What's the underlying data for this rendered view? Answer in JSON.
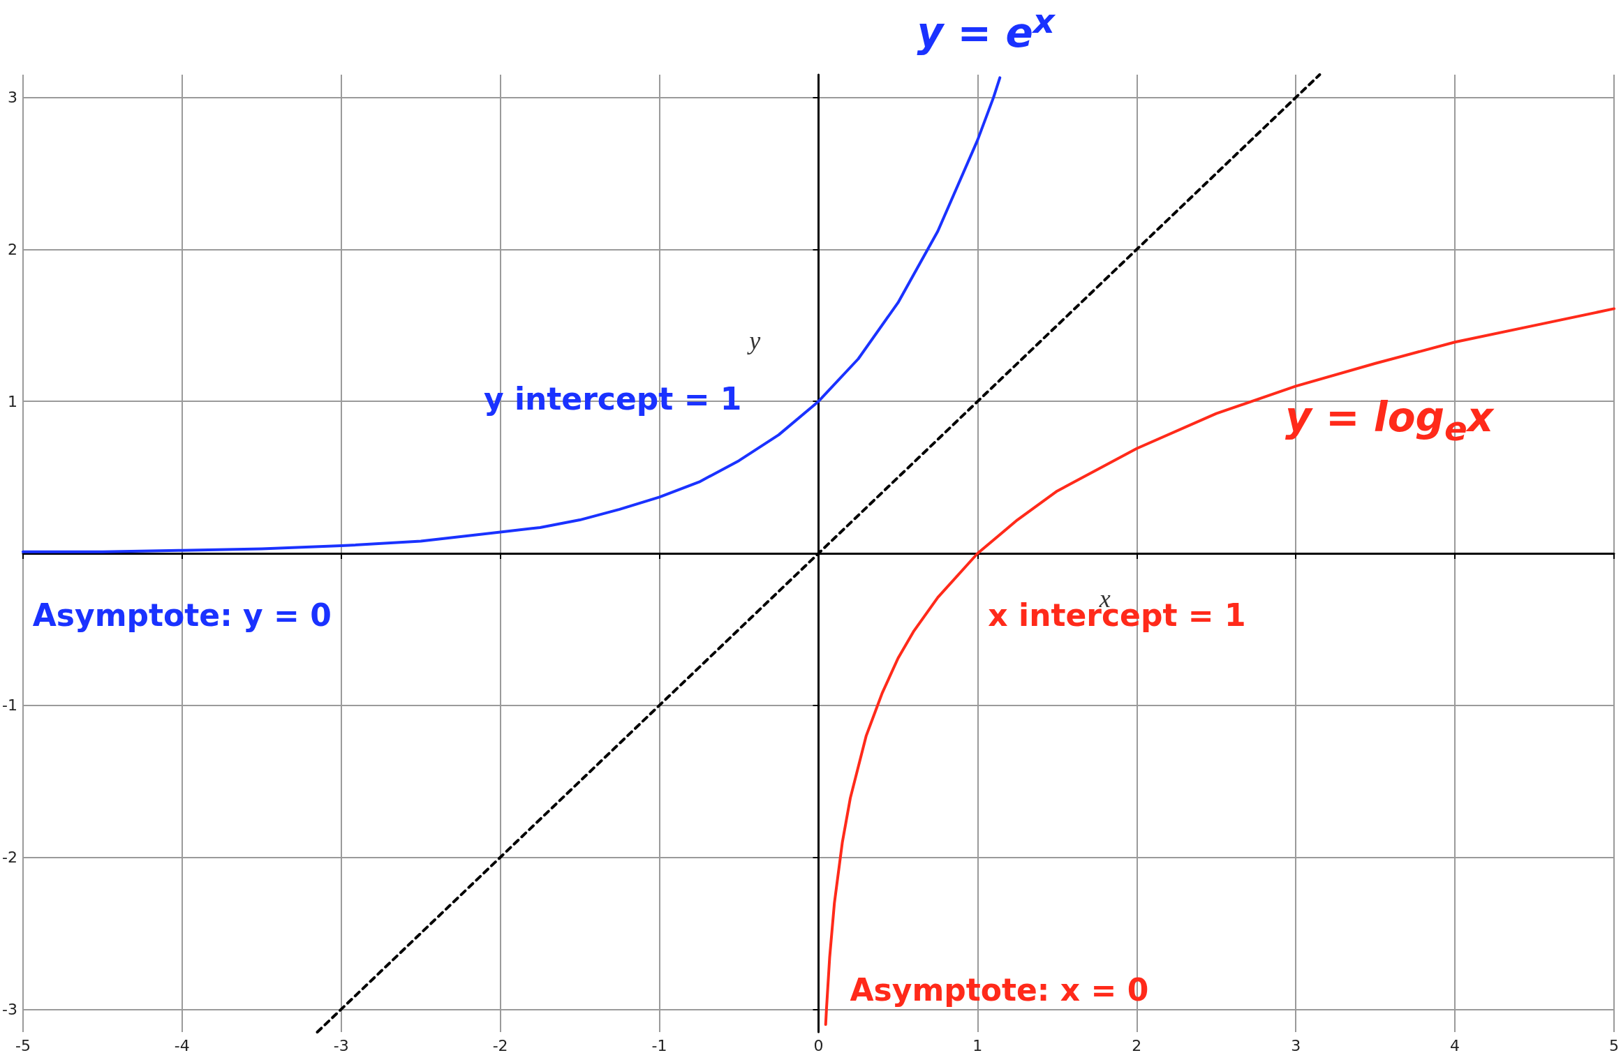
{
  "chart_data": {
    "type": "line",
    "xlabel": "x",
    "ylabel": "y",
    "xlim": [
      -5,
      5
    ],
    "ylim": [
      -3.15,
      3.15
    ],
    "xticks": [
      -5,
      -4,
      -3,
      -2,
      -1,
      0,
      1,
      2,
      3,
      4,
      5
    ],
    "yticks": [
      -3,
      -2,
      -1,
      {
        "value": 0,
        "label": null
      },
      1,
      2,
      3
    ],
    "grid": true,
    "legend": false,
    "marker": "none",
    "series": [
      {
        "name": "y = e$^{x}$",
        "color": "#1a32ff",
        "line_style": "solid",
        "x": [
          -5,
          -4.5,
          -4,
          -3.5,
          -3,
          -2.5,
          -2,
          -1.75,
          -1.5,
          -1.25,
          -1,
          -0.75,
          -0.5,
          -0.25,
          0,
          0.25,
          0.5,
          0.75,
          1,
          1.1,
          1.14
        ],
        "values": [
          0.01,
          0.01,
          0.02,
          0.03,
          0.05,
          0.08,
          0.14,
          0.17,
          0.22,
          0.29,
          0.37,
          0.47,
          0.61,
          0.78,
          1,
          1.28,
          1.65,
          2.12,
          2.72,
          3.0,
          3.13
        ]
      },
      {
        "name": "y = log$_{e}$x",
        "color": "#ff2a1a",
        "line_style": "solid",
        "x": [
          0.045,
          0.05,
          0.07,
          0.1,
          0.15,
          0.2,
          0.3,
          0.4,
          0.5,
          0.6,
          0.75,
          1,
          1.25,
          1.5,
          2,
          2.5,
          3,
          3.5,
          4,
          4.5,
          5
        ],
        "values": [
          -3.1,
          -3.0,
          -2.66,
          -2.3,
          -1.9,
          -1.61,
          -1.2,
          -0.92,
          -0.69,
          -0.51,
          -0.29,
          0,
          0.22,
          0.41,
          0.69,
          0.92,
          1.1,
          1.25,
          1.39,
          1.5,
          1.61
        ]
      },
      {
        "color": "#000000",
        "line_style": "dashed",
        "x": [
          -3.15,
          3.15
        ],
        "values": [
          -3.15,
          3.15
        ]
      }
    ],
    "annotations": [
      {
        "text": "y intercept = 1",
        "x": 0,
        "y": 1
      },
      {
        "text": "x intercept = 1",
        "x": 1,
        "y": 0
      },
      {
        "text": "Asymptote: y = 0",
        "x": -4,
        "y": 0
      },
      "Asymptote: x = 0"
    ]
  }
}
